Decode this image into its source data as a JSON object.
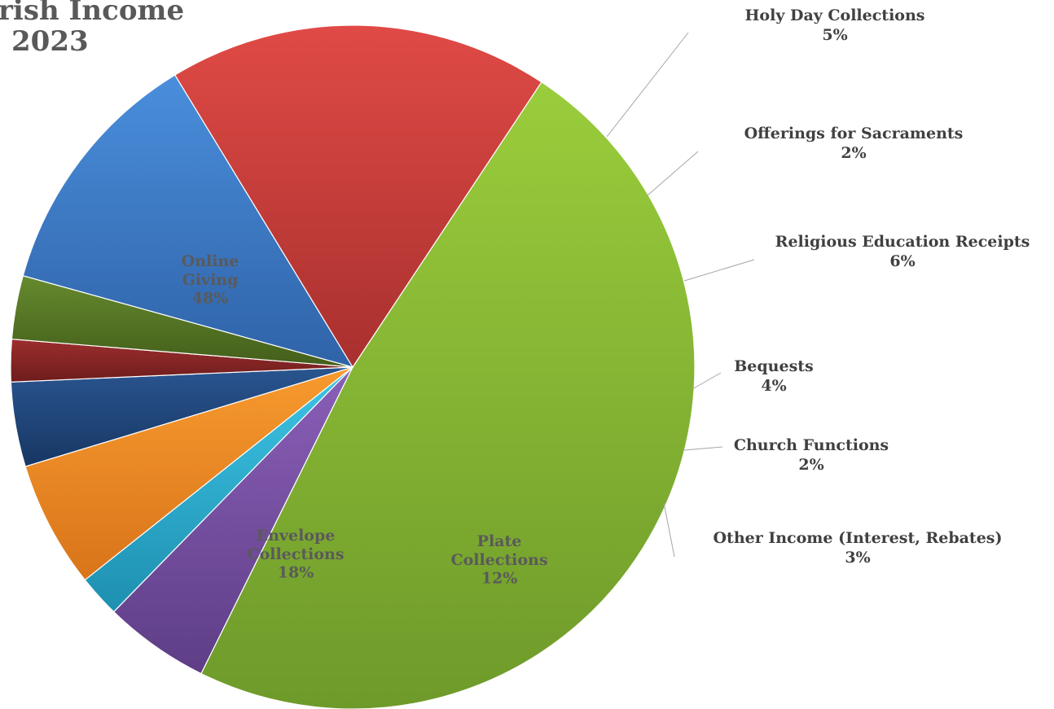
{
  "chart_data": {
    "type": "pie",
    "title_lines": [
      "rish Income",
      "2023"
    ],
    "slices": [
      {
        "name": "Online Giving",
        "label_lines": [
          "Online",
          "Giving"
        ],
        "pct_label": "48%",
        "value": 48,
        "color": "#9ACD3C",
        "color_dark": "#6E9A2A",
        "label_pos": "inside"
      },
      {
        "name": "Holy Day Collections",
        "label_lines": [
          "Holy Day Collections"
        ],
        "pct_label": "5%",
        "value": 5,
        "color": "#8A5FB8",
        "color_dark": "#5E3E86",
        "label_pos": "outside"
      },
      {
        "name": "Offerings for Sacraments",
        "label_lines": [
          "Offerings for Sacraments"
        ],
        "pct_label": "2%",
        "value": 2,
        "color": "#3EC5E6",
        "color_dark": "#1E8FB0",
        "label_pos": "outside"
      },
      {
        "name": "Religious Education Receipts",
        "label_lines": [
          "Religious Education Receipts"
        ],
        "pct_label": "6%",
        "value": 6,
        "color": "#F79A2E",
        "color_dark": "#D9741A",
        "label_pos": "outside"
      },
      {
        "name": "Bequests",
        "label_lines": [
          "Bequests"
        ],
        "pct_label": "4%",
        "value": 4,
        "color": "#2A5590",
        "color_dark": "#173763",
        "label_pos": "outside"
      },
      {
        "name": "Church Functions",
        "label_lines": [
          "Church Functions"
        ],
        "pct_label": "2%",
        "value": 2,
        "color": "#9C2E2E",
        "color_dark": "#6E1C1C",
        "label_pos": "outside"
      },
      {
        "name": "Other Income (Interest, Rebates)",
        "label_lines": [
          "Other Income (Interest, Rebates)"
        ],
        "pct_label": "3%",
        "value": 3,
        "color": "#668A2E",
        "color_dark": "#435E1A",
        "label_pos": "outside"
      },
      {
        "name": "Plate Collections",
        "label_lines": [
          "Plate",
          "Collections"
        ],
        "pct_label": "12%",
        "value": 12,
        "color": "#4A8EDC",
        "color_dark": "#2F63A8",
        "label_pos": "inside"
      },
      {
        "name": "Envelope Collections",
        "label_lines": [
          "Envelope",
          "Collections"
        ],
        "pct_label": "18%",
        "value": 18,
        "color": "#E04A46",
        "color_dark": "#A8302E",
        "label_pos": "inside"
      }
    ]
  }
}
